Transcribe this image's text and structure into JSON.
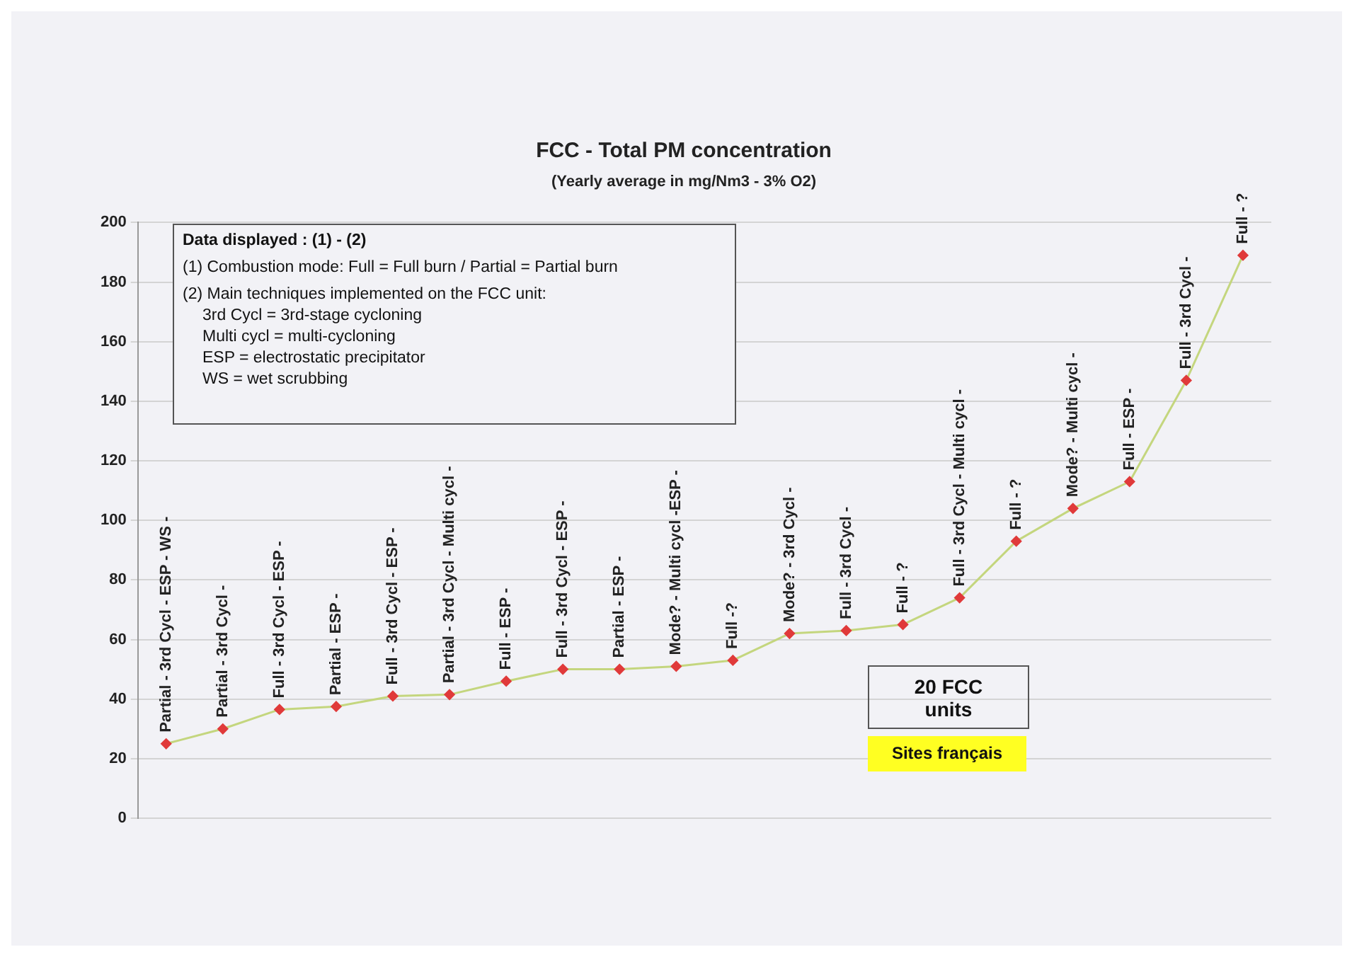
{
  "chart_data": {
    "type": "line",
    "title": "FCC - Total PM concentration",
    "subtitle": "(Yearly average in mg/Nm3 - 3% O2)",
    "categories": [
      "Partial - 3rd Cycl - ESP - WS -",
      "Partial - 3rd Cycl -",
      "Full - 3rd Cycl - ESP -",
      "Partial - ESP -",
      "Full - 3rd Cycl - ESP -",
      "Partial - 3rd Cycl - Multi cycl -",
      "Full - ESP -",
      "Full - 3rd Cycl - ESP -",
      "Partial - ESP -",
      "Mode? - Multi cycl -ESP -",
      "Full -?",
      "Mode? - 3rd Cycl -",
      "Full - 3rd Cycl -",
      "Full - ?",
      "Full - 3rd Cycl - Multi cycl -",
      "Full - ?",
      "Mode? - Multi cycl -",
      "Full - ESP -",
      "Full - 3rd Cycl -",
      "Full - ?"
    ],
    "series": [
      {
        "color": "#c4d67e",
        "values": [
          25,
          30,
          36.5,
          37.5,
          41,
          41.5,
          46,
          50,
          50,
          51,
          53,
          62,
          63,
          65,
          74,
          93,
          104,
          113,
          147,
          189
        ]
      }
    ],
    "ylim": [
      0,
      200
    ],
    "yticks": [
      0,
      20,
      40,
      60,
      80,
      100,
      120,
      140,
      160,
      180,
      200
    ],
    "grid": "y",
    "tick_labels": "y",
    "marker": "diamond",
    "line_style": "solid",
    "legend": false,
    "annotations": [
      "Data displayed  : (1) - (2)",
      "(1) Combustion mode:  Full = Full burn / Partial = Partial burn",
      "(2) Main techniques implemented on the FCC unit:",
      "3rd Cycl = 3rd-stage cycloning",
      "Multi cycl = multi-cycloning",
      "ESP = electrostatic precipitator",
      "WS = wet scrubbing",
      "20 FCC units",
      "Sites français"
    ]
  }
}
